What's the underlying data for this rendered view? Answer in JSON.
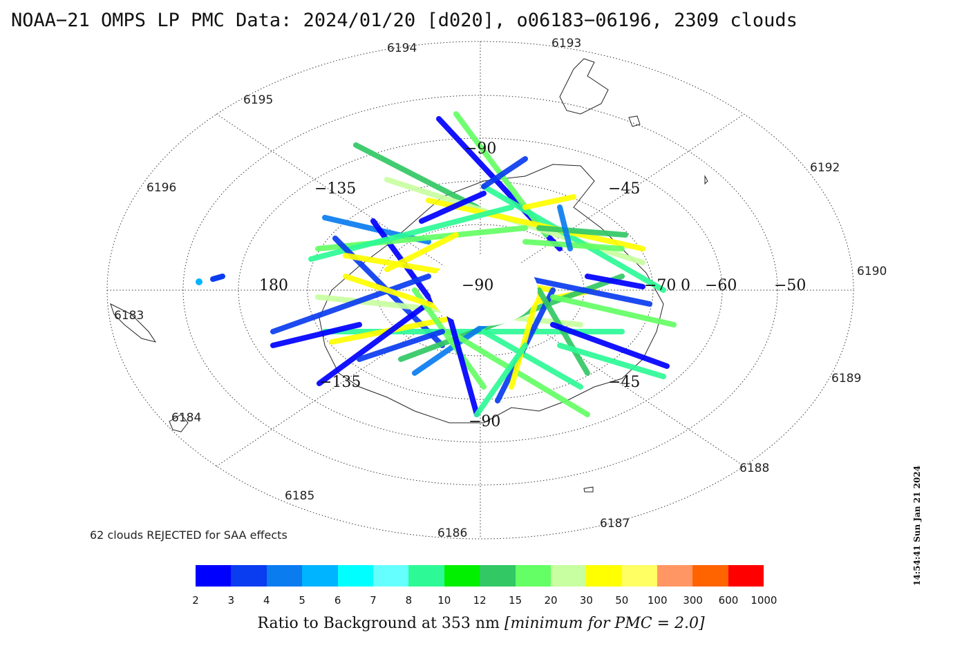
{
  "title": "NOAA−21 OMPS LP PMC Data: 2024/01/20 [d020], o06183−06196, 2309 clouds",
  "timestamp": "14:54:41 Sun Jan 21 2024",
  "rejected_note": "62 clouds REJECTED for SAA effects",
  "colorbar": {
    "title_prefix": "Ratio to Background at 353 nm ",
    "title_bracket": "[minimum for PMC = 2.0]",
    "ticks": [
      "2",
      "3",
      "4",
      "5",
      "6",
      "7",
      "8",
      "10",
      "12",
      "15",
      "20",
      "30",
      "50",
      "100",
      "300",
      "600",
      "1000"
    ],
    "colors": [
      "#0000ff",
      "#0a3cf0",
      "#0a7cf0",
      "#00b4ff",
      "#00ffff",
      "#66ffff",
      "#2dfa96",
      "#00f000",
      "#32c864",
      "#64ff64",
      "#c8ffa0",
      "#ffff00",
      "#ffff64",
      "#ff9664",
      "#ff6400",
      "#ff0000"
    ]
  },
  "map": {
    "projection": "south-polar",
    "longitude_labels": [
      "−90",
      "−135",
      "−45",
      "180",
      "0",
      "−135",
      "−45",
      "−90"
    ],
    "latitude_labels": [
      "−90",
      "−70",
      "0",
      "−60",
      "−50"
    ],
    "orbit_labels": [
      "6194",
      "6193",
      "6195",
      "6196",
      "6192",
      "6190",
      "6183",
      "6189",
      "6184",
      "6188",
      "6185",
      "6187",
      "6186"
    ]
  }
}
